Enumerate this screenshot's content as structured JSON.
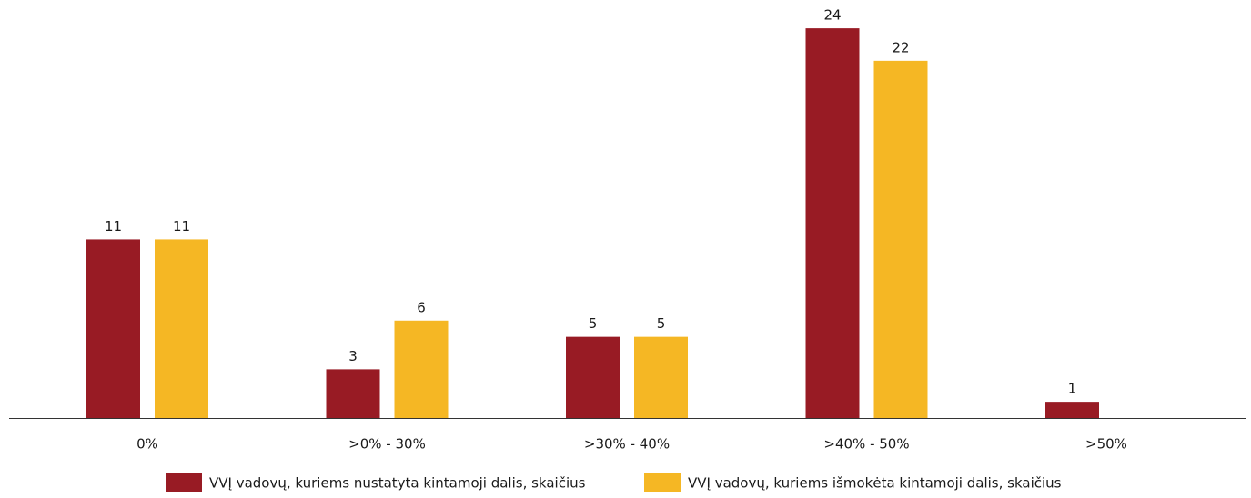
{
  "chart_data": {
    "type": "bar",
    "categories": [
      "0%",
      ">0% - 30%",
      ">30% - 40%",
      ">40% - 50%",
      ">50%"
    ],
    "series": [
      {
        "name": "VVĮ vadovų, kuriems nustatyta kintamoji dalis, skaičius",
        "color": "#981b24",
        "values": [
          11,
          3,
          5,
          24,
          1
        ]
      },
      {
        "name": "VVĮ vadovų, kuriems išmokėta kintamoji dalis, skaičius",
        "color": "#f5b724",
        "values": [
          11,
          6,
          5,
          22,
          null
        ]
      }
    ]
  }
}
